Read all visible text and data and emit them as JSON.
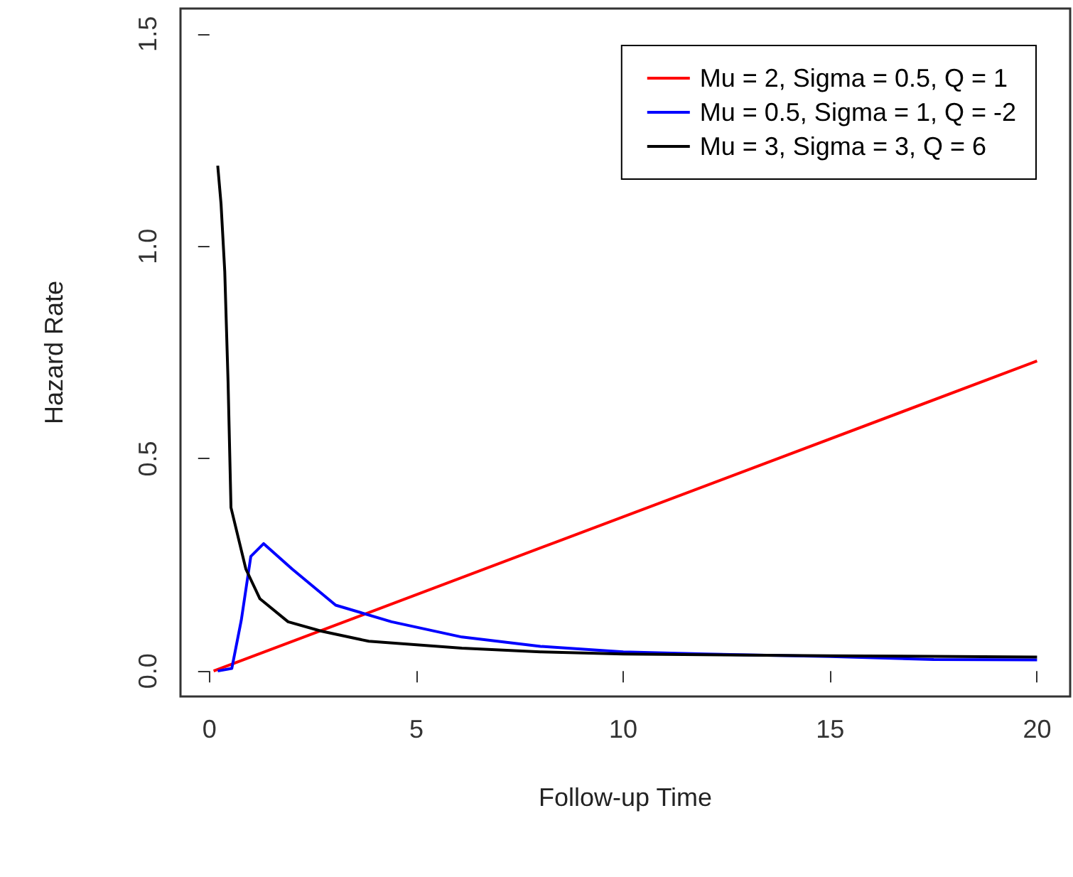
{
  "chart_data": {
    "type": "line",
    "xlabel": "Follow-up Time",
    "ylabel": "Hazard Rate",
    "xlim": [
      -0.7,
      20.8
    ],
    "ylim": [
      -0.06,
      1.56
    ],
    "xticks": [
      0,
      5,
      10,
      15,
      20
    ],
    "yticks": [
      {
        "value": 0,
        "label": "0.0"
      },
      {
        "value": 0.5,
        "label": "0.5"
      },
      {
        "value": 1,
        "label": "1.0"
      },
      {
        "value": 1.5,
        "label": "1.5"
      }
    ],
    "grid": false,
    "legend": "top right",
    "marker": "none",
    "line_style": "solid",
    "series": [
      {
        "name": "Mu = 2, Sigma = 0.5, Q = 1",
        "color": "#ff0000",
        "x": [
          0.1,
          20
        ],
        "values": [
          0,
          0.73
        ]
      },
      {
        "name": "Mu = 0.5, Sigma = 1, Q = -2",
        "color": "#0000ff",
        "x": [
          0.2,
          0.54,
          0.77,
          1.0,
          1.31,
          2.0,
          3.05,
          4.4,
          6.1,
          8,
          10,
          12,
          15,
          17.5,
          20
        ],
        "values": [
          0,
          0.006,
          0.12,
          0.27,
          0.3,
          0.24,
          0.155,
          0.116,
          0.08,
          0.058,
          0.045,
          0.04,
          0.034,
          0.027,
          0.026
        ]
      },
      {
        "name": "Mu = 3, Sigma = 3, Q = 6",
        "color": "#000000",
        "x": [
          0.2,
          0.28,
          0.37,
          0.45,
          0.52,
          0.88,
          1.22,
          1.9,
          2.7,
          3.85,
          6.1,
          8,
          10,
          15,
          20
        ],
        "values": [
          1.19,
          1.1,
          0.94,
          0.68,
          0.385,
          0.24,
          0.17,
          0.116,
          0.094,
          0.07,
          0.054,
          0.045,
          0.04,
          0.036,
          0.033
        ]
      }
    ]
  }
}
